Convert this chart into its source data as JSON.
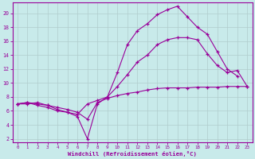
{
  "xlabel": "Windchill (Refroidissement éolien,°C)",
  "bg_color": "#c8eaea",
  "line_color": "#990099",
  "grid_color": "#b0cccc",
  "xlim": [
    -0.5,
    23.5
  ],
  "ylim": [
    1.5,
    21.5
  ],
  "xticks": [
    0,
    1,
    2,
    3,
    4,
    5,
    6,
    7,
    8,
    9,
    10,
    11,
    12,
    13,
    14,
    15,
    16,
    17,
    18,
    19,
    20,
    21,
    22,
    23
  ],
  "yticks": [
    2,
    4,
    6,
    8,
    10,
    12,
    14,
    16,
    18,
    20
  ],
  "line1_x": [
    0,
    1,
    2,
    3,
    4,
    5,
    6,
    7,
    8,
    9,
    10,
    11,
    12,
    13,
    14,
    15,
    16,
    17,
    18,
    19,
    20,
    21,
    22,
    23
  ],
  "line1_y": [
    7.0,
    7.0,
    7.2,
    6.8,
    6.5,
    6.2,
    5.8,
    4.8,
    7.2,
    7.8,
    8.2,
    8.5,
    8.7,
    9.0,
    9.2,
    9.3,
    9.3,
    9.3,
    9.4,
    9.4,
    9.4,
    9.5,
    9.5,
    9.5
  ],
  "line2_x": [
    0,
    1,
    2,
    3,
    4,
    5,
    6,
    7,
    8,
    9,
    10,
    11,
    12,
    13,
    14,
    15,
    16,
    17,
    18,
    19,
    20,
    21,
    22,
    23
  ],
  "line2_y": [
    7.0,
    7.2,
    6.8,
    6.5,
    6.0,
    5.8,
    5.5,
    7.0,
    7.5,
    8.0,
    9.5,
    11.2,
    13.0,
    14.0,
    15.5,
    16.2,
    16.5,
    16.5,
    16.2,
    14.2,
    12.5,
    11.5,
    11.8,
    9.5
  ],
  "line3_x": [
    0,
    1,
    2,
    3,
    4,
    5,
    6,
    7,
    8,
    9,
    10,
    11,
    12,
    13,
    14,
    15,
    16,
    17,
    18,
    19,
    20,
    21,
    22
  ],
  "line3_y": [
    7.0,
    7.2,
    7.0,
    6.8,
    6.2,
    5.8,
    5.2,
    2.0,
    7.0,
    8.0,
    11.5,
    15.5,
    17.5,
    18.5,
    19.8,
    20.5,
    21.0,
    19.5,
    18.0,
    17.0,
    14.5,
    12.0,
    11.0
  ]
}
